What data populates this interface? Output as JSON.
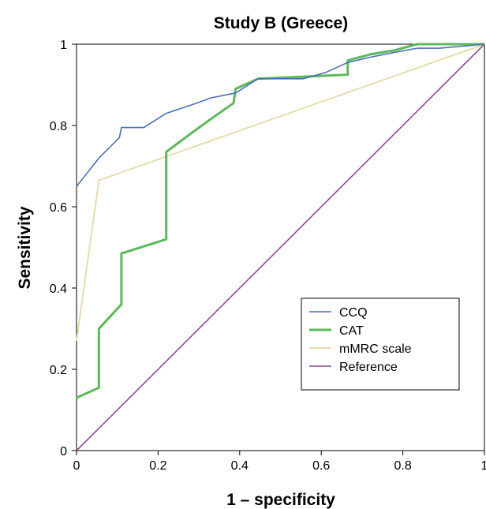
{
  "chart_data": {
    "type": "line",
    "title": "Study B (Greece)",
    "xlabel": "1 – specificity",
    "ylabel": "Sensitivity",
    "xlim": [
      0,
      1
    ],
    "ylim": [
      0,
      1
    ],
    "x_ticks": [
      "0",
      "0.2",
      "0.4",
      "0.6",
      "0.8",
      "1"
    ],
    "y_ticks": [
      "0",
      "0.2",
      "0.4",
      "0.6",
      "0.8",
      "1"
    ],
    "grid": false,
    "legend_position": "lower-right",
    "series": [
      {
        "name": "CCQ",
        "color": "#4a6fb5",
        "points": [
          [
            0,
            0.65
          ],
          [
            0.055,
            0.72
          ],
          [
            0.105,
            0.77
          ],
          [
            0.11,
            0.795
          ],
          [
            0.165,
            0.795
          ],
          [
            0.22,
            0.83
          ],
          [
            0.28,
            0.85
          ],
          [
            0.33,
            0.868
          ],
          [
            0.39,
            0.88
          ],
          [
            0.445,
            0.915
          ],
          [
            0.555,
            0.915
          ],
          [
            0.61,
            0.93
          ],
          [
            0.665,
            0.955
          ],
          [
            0.72,
            0.968
          ],
          [
            0.78,
            0.98
          ],
          [
            0.835,
            0.99
          ],
          [
            0.89,
            0.99
          ],
          [
            1,
            1
          ]
        ]
      },
      {
        "name": "CAT",
        "color": "#5cb85c",
        "points": [
          [
            0,
            0.13
          ],
          [
            0.055,
            0.155
          ],
          [
            0.055,
            0.3
          ],
          [
            0.11,
            0.36
          ],
          [
            0.11,
            0.485
          ],
          [
            0.22,
            0.52
          ],
          [
            0.22,
            0.735
          ],
          [
            0.28,
            0.78
          ],
          [
            0.335,
            0.82
          ],
          [
            0.385,
            0.855
          ],
          [
            0.39,
            0.89
          ],
          [
            0.445,
            0.915
          ],
          [
            0.665,
            0.925
          ],
          [
            0.665,
            0.96
          ],
          [
            0.72,
            0.975
          ],
          [
            0.78,
            0.985
          ],
          [
            0.835,
            1
          ],
          [
            1,
            1
          ]
        ]
      },
      {
        "name": "mMRC scale",
        "color": "#e6ddb0",
        "points": [
          [
            0,
            0.27
          ],
          [
            0.055,
            0.665
          ],
          [
            1,
            1
          ]
        ]
      },
      {
        "name": "Reference",
        "color": "#8b4a8b",
        "points": [
          [
            0,
            0
          ],
          [
            1,
            1
          ]
        ]
      }
    ]
  }
}
